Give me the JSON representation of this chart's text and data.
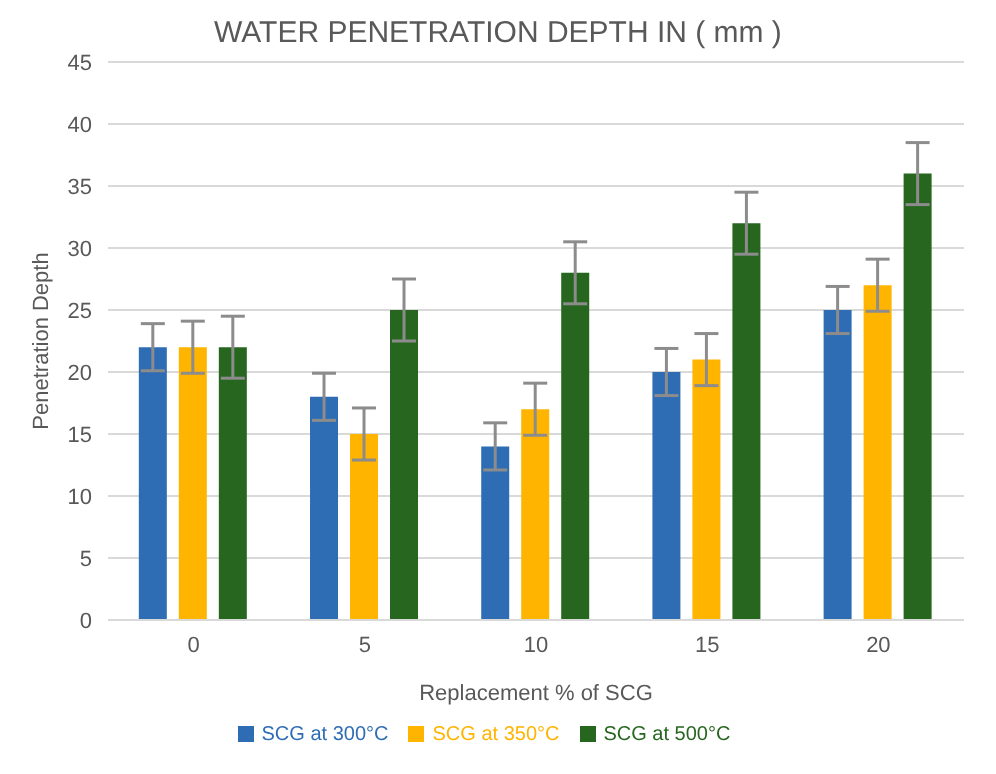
{
  "chart_data": {
    "type": "bar",
    "title": "WATER PENETRATION DEPTH IN ( mm )",
    "xlabel": "Replacement %  of  SCG",
    "ylabel": "Penetration Depth",
    "categories": [
      "0",
      "5",
      "10",
      "15",
      "20"
    ],
    "series": [
      {
        "name": "SCG at 300°C",
        "color": "#2e6db4",
        "values": [
          22,
          18,
          14,
          20,
          25
        ],
        "errors": [
          1.9,
          1.9,
          1.9,
          1.9,
          1.9
        ]
      },
      {
        "name": "SCG at 350°C",
        "color": "#ffb400",
        "values": [
          22,
          15,
          17,
          21,
          27
        ],
        "errors": [
          2.1,
          2.1,
          2.1,
          2.1,
          2.1
        ]
      },
      {
        "name": "SCG at 500°C",
        "color": "#26661f",
        "values": [
          22,
          25,
          28,
          32,
          36
        ],
        "errors": [
          2.5,
          2.5,
          2.5,
          2.5,
          2.5
        ]
      }
    ],
    "ylim": [
      0,
      45
    ],
    "yticks": [
      0,
      5,
      10,
      15,
      20,
      25,
      30,
      35,
      40,
      45
    ],
    "grid": "y",
    "legend": "bottom"
  }
}
